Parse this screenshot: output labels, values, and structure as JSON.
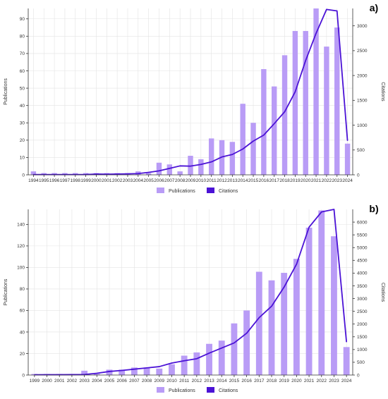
{
  "colors": {
    "bar": "#b99cf6",
    "line": "#4b12d6",
    "grid": "#e3e3e3"
  },
  "chart_data": [
    {
      "type": "bar",
      "panel_label": "a)",
      "xlabel": "",
      "ylabel": "Publications",
      "y2label": "Citations",
      "ylim": [
        0,
        96
      ],
      "y_ticks": [
        0,
        10,
        20,
        30,
        40,
        50,
        60,
        70,
        80,
        90
      ],
      "y2lim": [
        0,
        3350
      ],
      "y2_ticks": [
        0,
        500,
        1000,
        1500,
        2000,
        2500,
        3000
      ],
      "grid": true,
      "legend": {
        "position": "bottom-center",
        "publications": "Publications",
        "citations": "Citations"
      },
      "categories": [
        "1994",
        "1995",
        "1996",
        "1997",
        "1998",
        "1999",
        "2000",
        "2001",
        "2002",
        "2003",
        "2004",
        "2005",
        "2006",
        "2007",
        "2008",
        "2009",
        "2010",
        "2011",
        "2012",
        "2013",
        "2014",
        "2015",
        "2016",
        "2017",
        "2018",
        "2019",
        "2020",
        "2021",
        "2022",
        "2023",
        "2024"
      ],
      "series": [
        {
          "name": "Publications",
          "axis": "left",
          "kind": "bar",
          "values": [
            2,
            1,
            1,
            1,
            1,
            1,
            1,
            1,
            1,
            1,
            2,
            1,
            7,
            6,
            2,
            11,
            9,
            21,
            20,
            19,
            41,
            30,
            61,
            51,
            69,
            83,
            83,
            96,
            74,
            85,
            18
          ]
        },
        {
          "name": "Citations",
          "axis": "right",
          "kind": "line",
          "values": [
            5,
            5,
            5,
            5,
            5,
            6,
            15,
            12,
            15,
            20,
            25,
            50,
            80,
            130,
            180,
            175,
            210,
            260,
            360,
            410,
            520,
            680,
            800,
            1030,
            1270,
            1670,
            2300,
            2850,
            3330,
            3300,
            690
          ]
        }
      ]
    },
    {
      "type": "bar",
      "panel_label": "b)",
      "xlabel": "",
      "ylabel": "Publications",
      "y2label": "Citations",
      "ylim": [
        0,
        154
      ],
      "y_ticks": [
        0,
        20,
        40,
        60,
        80,
        100,
        120,
        140
      ],
      "y2lim": [
        0,
        6500
      ],
      "y2_ticks": [
        0,
        500,
        1000,
        1500,
        2000,
        2500,
        3000,
        3500,
        4000,
        4500,
        5000,
        5500,
        6000
      ],
      "grid": true,
      "legend": {
        "position": "bottom-center",
        "publications": "Publications",
        "citations": "Citations"
      },
      "categories": [
        "1999",
        "2000",
        "2001",
        "2002",
        "2003",
        "2004",
        "2005",
        "2006",
        "2007",
        "2008",
        "2009",
        "2010",
        "2011",
        "2012",
        "2013",
        "2014",
        "2015",
        "2016",
        "2017",
        "2018",
        "2019",
        "2020",
        "2021",
        "2022",
        "2023",
        "2024"
      ],
      "series": [
        {
          "name": "Publications",
          "axis": "left",
          "kind": "bar",
          "values": [
            1,
            1,
            1,
            1,
            4,
            1,
            5,
            5,
            7,
            7,
            6,
            10,
            18,
            21,
            29,
            32,
            48,
            60,
            96,
            88,
            95,
            108,
            137,
            153,
            129,
            26
          ]
        },
        {
          "name": "Citations",
          "axis": "right",
          "kind": "line",
          "values": [
            10,
            12,
            12,
            15,
            20,
            70,
            140,
            180,
            230,
            280,
            330,
            470,
            560,
            640,
            860,
            1060,
            1260,
            1640,
            2250,
            2700,
            3450,
            4350,
            5800,
            6400,
            6500,
            1300
          ]
        }
      ]
    }
  ]
}
